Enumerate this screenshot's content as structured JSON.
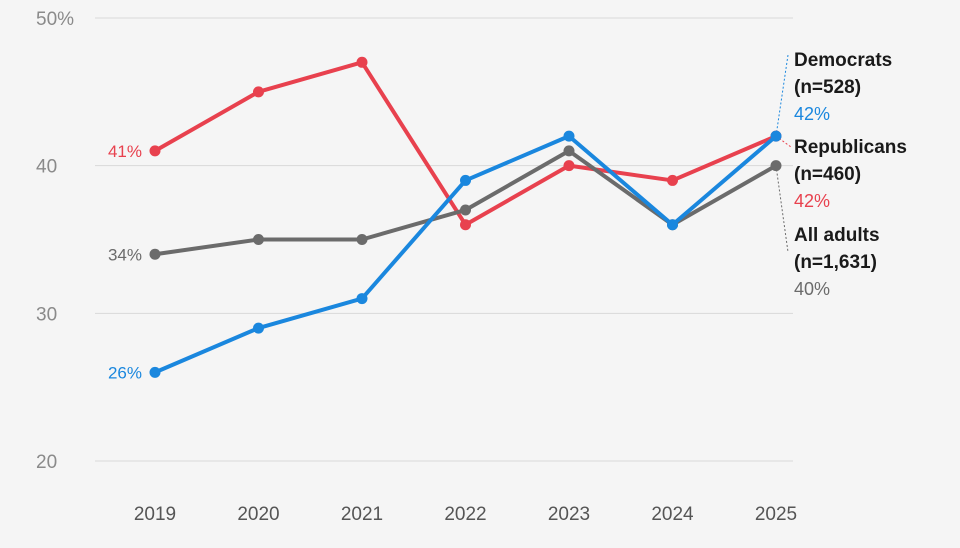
{
  "chart_data": {
    "type": "line",
    "title": "",
    "xlabel": "",
    "ylabel": "",
    "ylim": [
      20,
      50
    ],
    "yticks": [
      {
        "value": 50,
        "label": "50%"
      },
      {
        "value": 40,
        "label": "40"
      },
      {
        "value": 30,
        "label": "30"
      },
      {
        "value": 20,
        "label": "20"
      }
    ],
    "categories": [
      "2019",
      "2020",
      "2021",
      "2022",
      "2023",
      "2024",
      "2025"
    ],
    "grid": true,
    "series": [
      {
        "name": "Republicans",
        "sample": "(n=460)",
        "color": "#e8414e",
        "values": [
          41,
          45,
          47,
          36,
          40,
          39,
          42
        ],
        "start_label": "41%",
        "end_label": "42%"
      },
      {
        "name": "All adults",
        "sample": "(n=1,631)",
        "color": "#6b6b6b",
        "values": [
          34,
          35,
          35,
          37,
          41,
          36,
          40
        ],
        "start_label": "34%",
        "end_label": "40%"
      },
      {
        "name": "Democrats",
        "sample": "(n=528)",
        "color": "#1a87de",
        "values": [
          26,
          29,
          31,
          39,
          42,
          36,
          42
        ],
        "start_label": "26%",
        "end_label": "42%"
      }
    ]
  }
}
